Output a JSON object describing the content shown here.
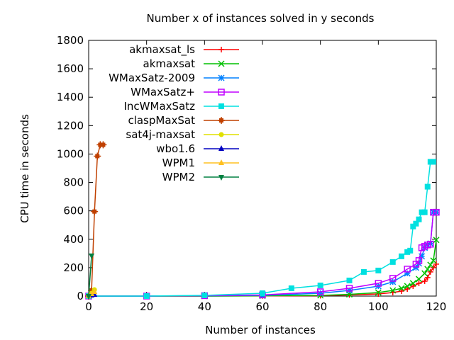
{
  "chart_data": {
    "type": "line",
    "title": "Number x of instances solved in y seconds",
    "xlabel": "Number of instances",
    "ylabel": "CPU time in seconds",
    "xlim": [
      0,
      120
    ],
    "ylim": [
      0,
      1800
    ],
    "xticks": [
      "0",
      "20",
      "40",
      "60",
      "80",
      "100",
      "120"
    ],
    "yticks": [
      "0",
      "200",
      "400",
      "600",
      "800",
      "1000",
      "1200",
      "1400",
      "1600",
      "1800"
    ],
    "legend_position": "top-left",
    "grid": false,
    "series": [
      {
        "name": "akmaxsat_ls",
        "color": "#ff0000",
        "marker": "plus",
        "x": [
          0,
          20,
          40,
          60,
          80,
          90,
          100,
          105,
          108,
          110,
          112,
          114,
          116,
          117,
          118,
          119,
          120
        ],
        "y": [
          0,
          0,
          0,
          1,
          3,
          8,
          15,
          25,
          35,
          50,
          70,
          90,
          105,
          130,
          170,
          200,
          225
        ]
      },
      {
        "name": "akmaxsat",
        "color": "#00c000",
        "marker": "x",
        "x": [
          0,
          20,
          40,
          60,
          80,
          90,
          100,
          105,
          108,
          110,
          112,
          114,
          116,
          117,
          118,
          119,
          120
        ],
        "y": [
          0,
          0,
          0,
          2,
          5,
          12,
          25,
          40,
          55,
          70,
          90,
          120,
          160,
          190,
          220,
          250,
          395
        ]
      },
      {
        "name": "WMaxSatz-2009",
        "color": "#0080ff",
        "marker": "star",
        "x": [
          0,
          20,
          40,
          60,
          80,
          90,
          100,
          105,
          110,
          113,
          114,
          115,
          116,
          117,
          118,
          119,
          120
        ],
        "y": [
          0,
          0,
          2,
          5,
          20,
          40,
          70,
          100,
          160,
          200,
          230,
          280,
          340,
          360,
          370,
          590,
          590
        ]
      },
      {
        "name": "WMaxSatz+",
        "color": "#c000ff",
        "marker": "square-open",
        "x": [
          0,
          20,
          40,
          60,
          80,
          90,
          100,
          105,
          110,
          113,
          114,
          115,
          116,
          117,
          118,
          119,
          120
        ],
        "y": [
          0,
          0,
          3,
          8,
          30,
          55,
          90,
          125,
          190,
          225,
          250,
          340,
          350,
          360,
          365,
          590,
          590
        ]
      },
      {
        "name": "IncWMaxSatz",
        "color": "#00e0e0",
        "marker": "square",
        "x": [
          0,
          20,
          40,
          60,
          70,
          80,
          90,
          95,
          100,
          105,
          108,
          110,
          111,
          112,
          113,
          114,
          115,
          116,
          117,
          118,
          119
        ],
        "y": [
          0,
          0,
          5,
          20,
          55,
          75,
          110,
          170,
          180,
          240,
          280,
          310,
          320,
          490,
          510,
          540,
          590,
          590,
          770,
          945,
          945
        ]
      },
      {
        "name": "claspMaxSat",
        "color": "#c04000",
        "marker": "square-plus",
        "x": [
          0,
          1,
          2,
          3,
          4,
          5
        ],
        "y": [
          0,
          40,
          595,
          985,
          1065,
          1065
        ]
      },
      {
        "name": "sat4j-maxsat",
        "color": "#e0e000",
        "marker": "dot",
        "x": [
          0,
          1,
          2
        ],
        "y": [
          0,
          20,
          45
        ]
      },
      {
        "name": "wbo1.6",
        "color": "#0000c0",
        "marker": "triangle",
        "x": [
          0,
          1,
          2
        ],
        "y": [
          0,
          5,
          10
        ]
      },
      {
        "name": "WPM1",
        "color": "#ffc020",
        "marker": "triangle",
        "x": [
          0,
          1,
          2
        ],
        "y": [
          0,
          15,
          30
        ]
      },
      {
        "name": "WPM2",
        "color": "#008040",
        "marker": "triangle-down",
        "x": [
          0,
          1
        ],
        "y": [
          0,
          285
        ]
      }
    ]
  }
}
